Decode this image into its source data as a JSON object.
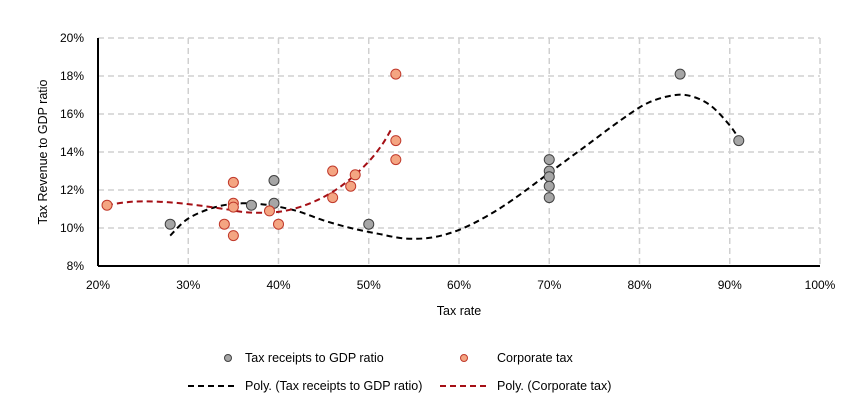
{
  "chart_data": {
    "type": "scatter",
    "title": "",
    "xlabel": "Tax rate",
    "ylabel": "Tax Revenue to GDP ratio",
    "xlim": [
      20,
      100
    ],
    "ylim": [
      8,
      20
    ],
    "x_ticks": [
      "20%",
      "30%",
      "40%",
      "50%",
      "60%",
      "70%",
      "80%",
      "90%",
      "100%"
    ],
    "y_ticks": [
      "8%",
      "10%",
      "12%",
      "14%",
      "16%",
      "18%",
      "20%"
    ],
    "x_tick_values": [
      20,
      30,
      40,
      50,
      60,
      70,
      80,
      90,
      100
    ],
    "y_tick_values": [
      8,
      10,
      12,
      14,
      16,
      18,
      20
    ],
    "grid": true,
    "legend_position": "bottom",
    "series": [
      {
        "name": "Tax receipts to GDP ratio",
        "kind": "scatter",
        "color": "#a6a6a6",
        "edge_color": "#404040",
        "points": [
          [
            28,
            10.2
          ],
          [
            37,
            11.2
          ],
          [
            39.5,
            12.5
          ],
          [
            39.5,
            11.3
          ],
          [
            50,
            10.2
          ],
          [
            70,
            13.6
          ],
          [
            70,
            13.0
          ],
          [
            70,
            12.7
          ],
          [
            70,
            12.2
          ],
          [
            70,
            11.6
          ],
          [
            84.5,
            18.1
          ],
          [
            91,
            14.6
          ]
        ]
      },
      {
        "name": "Corporate tax",
        "kind": "scatter",
        "color": "#f4a582",
        "edge_color": "#c0392b",
        "points": [
          [
            21,
            11.2
          ],
          [
            34,
            10.2
          ],
          [
            35,
            12.4
          ],
          [
            35,
            11.3
          ],
          [
            35,
            11.1
          ],
          [
            35,
            9.6
          ],
          [
            39,
            10.9
          ],
          [
            40,
            10.2
          ],
          [
            46,
            13.0
          ],
          [
            46,
            11.6
          ],
          [
            48,
            12.2
          ],
          [
            48.5,
            12.8
          ],
          [
            53,
            18.1
          ],
          [
            53,
            14.6
          ],
          [
            53,
            13.6
          ]
        ]
      },
      {
        "name": "Poly. (Tax receipts to GDP ratio)",
        "kind": "trendline",
        "color": "#000000",
        "points": [
          [
            28,
            9.6
          ],
          [
            30,
            10.5
          ],
          [
            33,
            11.1
          ],
          [
            36,
            11.3
          ],
          [
            39,
            11.2
          ],
          [
            42,
            10.9
          ],
          [
            45,
            10.4
          ],
          [
            48,
            10.0
          ],
          [
            51,
            9.7
          ],
          [
            54,
            9.45
          ],
          [
            57,
            9.5
          ],
          [
            60,
            9.9
          ],
          [
            63,
            10.6
          ],
          [
            66,
            11.5
          ],
          [
            70,
            12.9
          ],
          [
            74,
            14.3
          ],
          [
            78,
            15.7
          ],
          [
            81,
            16.6
          ],
          [
            84,
            17.0
          ],
          [
            86,
            16.9
          ],
          [
            88,
            16.4
          ],
          [
            90,
            15.4
          ],
          [
            91,
            14.7
          ]
        ]
      },
      {
        "name": "Poly. (Corporate tax)",
        "kind": "trendline",
        "color": "#a50f15",
        "points": [
          [
            21,
            11.2
          ],
          [
            23,
            11.35
          ],
          [
            25,
            11.4
          ],
          [
            28,
            11.35
          ],
          [
            31,
            11.2
          ],
          [
            34,
            11.0
          ],
          [
            36,
            10.85
          ],
          [
            38,
            10.8
          ],
          [
            40,
            10.85
          ],
          [
            42,
            11.05
          ],
          [
            44,
            11.4
          ],
          [
            46,
            11.9
          ],
          [
            48,
            12.6
          ],
          [
            50,
            13.5
          ],
          [
            51.5,
            14.4
          ],
          [
            52.5,
            15.2
          ]
        ]
      }
    ]
  },
  "legend": {
    "items": [
      {
        "label": "Tax receipts to GDP ratio"
      },
      {
        "label": "Corporate tax"
      },
      {
        "label": "Poly. (Tax receipts to GDP ratio)"
      },
      {
        "label": "Poly. (Corporate tax)"
      }
    ]
  }
}
